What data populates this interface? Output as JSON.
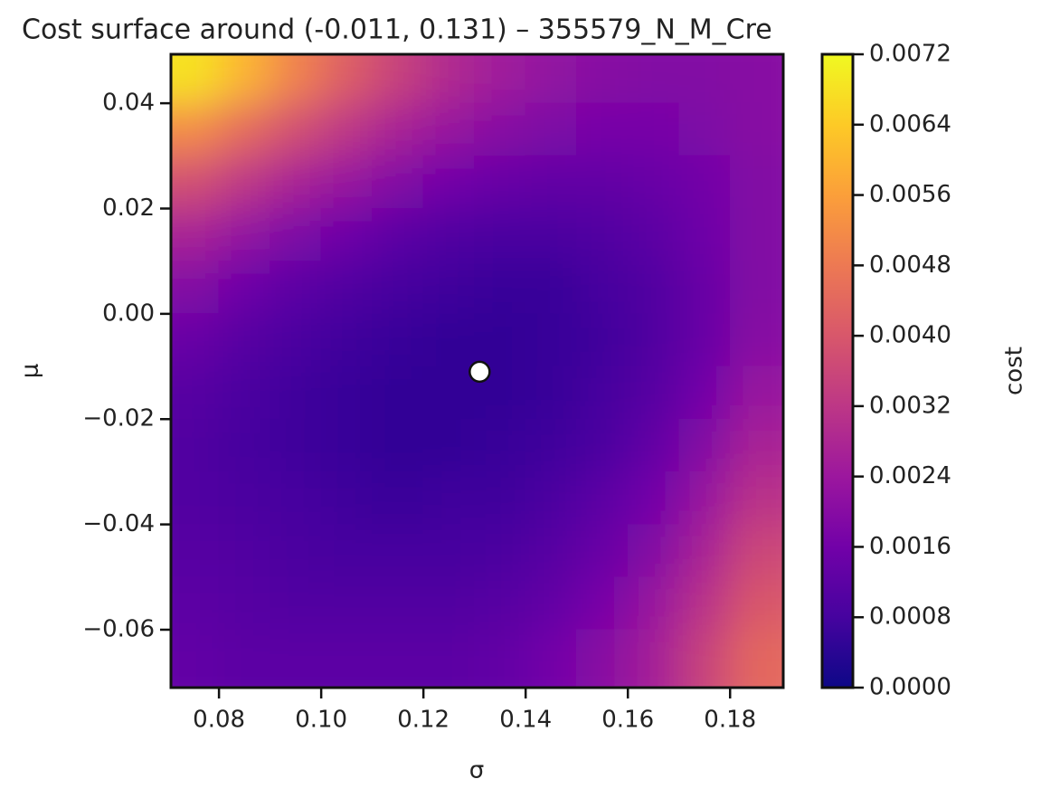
{
  "chart_data": {
    "type": "heatmap",
    "title": "Cost surface around (-0.011, 0.131) – 355579_N_M_Cre",
    "x_label": "σ",
    "y_label": "μ",
    "colorbar_label": "cost",
    "x": [
      0.075,
      0.085,
      0.095,
      0.105,
      0.115,
      0.125,
      0.135,
      0.145,
      0.155,
      0.165,
      0.175,
      0.185
    ],
    "y": [
      0.045,
      0.035,
      0.025,
      0.015,
      0.005,
      -0.005,
      -0.015,
      -0.025,
      -0.035,
      -0.045,
      -0.055,
      -0.065
    ],
    "z": [
      [
        0.0068,
        0.006,
        0.005,
        0.0042,
        0.0035,
        0.0029,
        0.0025,
        0.0022,
        0.002,
        0.0019,
        0.0019,
        0.002
      ],
      [
        0.0052,
        0.0045,
        0.0038,
        0.0032,
        0.0027,
        0.0023,
        0.002,
        0.0018,
        0.0017,
        0.0017,
        0.0018,
        0.002
      ],
      [
        0.0038,
        0.0032,
        0.0027,
        0.0023,
        0.0019,
        0.0016,
        0.0014,
        0.0013,
        0.0013,
        0.0014,
        0.0016,
        0.0019
      ],
      [
        0.0027,
        0.0022,
        0.0018,
        0.0015,
        0.0012,
        0.001,
        0.0009,
        0.0009,
        0.001,
        0.0012,
        0.0015,
        0.0019
      ],
      [
        0.0019,
        0.0015,
        0.0012,
        0.001,
        0.0008,
        0.0007,
        0.0006,
        0.0006,
        0.0008,
        0.001,
        0.0014,
        0.0019
      ],
      [
        0.0014,
        0.0011,
        0.0009,
        0.0007,
        0.0006,
        0.0005,
        0.0005,
        0.0006,
        0.0007,
        0.001,
        0.0014,
        0.002
      ],
      [
        0.0011,
        0.0009,
        0.0007,
        0.0006,
        0.0005,
        0.0005,
        0.0005,
        0.0006,
        0.0008,
        0.0011,
        0.0016,
        0.0023
      ],
      [
        0.001,
        0.0008,
        0.0007,
        0.0006,
        0.0005,
        0.0005,
        0.0006,
        0.0007,
        0.0009,
        0.0013,
        0.0019,
        0.0027
      ],
      [
        0.001,
        0.0009,
        0.0008,
        0.0007,
        0.0006,
        0.0007,
        0.0007,
        0.0009,
        0.0012,
        0.0016,
        0.0023,
        0.0031
      ],
      [
        0.0011,
        0.001,
        0.0009,
        0.0008,
        0.0008,
        0.0008,
        0.0009,
        0.0011,
        0.0014,
        0.0019,
        0.0027,
        0.0036
      ],
      [
        0.0012,
        0.0011,
        0.001,
        0.001,
        0.001,
        0.001,
        0.0011,
        0.0013,
        0.0017,
        0.0023,
        0.0031,
        0.004
      ],
      [
        0.0013,
        0.0012,
        0.0012,
        0.0012,
        0.0012,
        0.0012,
        0.0013,
        0.0016,
        0.002,
        0.0026,
        0.0035,
        0.0044
      ]
    ],
    "point": {
      "x": 0.131,
      "y": -0.011
    },
    "xlim": [
      0.0706,
      0.1904
    ],
    "ylim": [
      -0.071,
      0.0493
    ],
    "xticks": [
      {
        "value": 0.08,
        "label": "0.08"
      },
      {
        "value": 0.1,
        "label": "0.10"
      },
      {
        "value": 0.12,
        "label": "0.12"
      },
      {
        "value": 0.14,
        "label": "0.14"
      },
      {
        "value": 0.16,
        "label": "0.16"
      },
      {
        "value": 0.18,
        "label": "0.18"
      }
    ],
    "yticks": [
      {
        "value": -0.06,
        "label": "−0.06"
      },
      {
        "value": -0.04,
        "label": "−0.04"
      },
      {
        "value": -0.02,
        "label": "−0.02"
      },
      {
        "value": 0,
        "label": "0.00"
      },
      {
        "value": 0.02,
        "label": "0.02"
      },
      {
        "value": 0.04,
        "label": "0.04"
      }
    ],
    "clim": [
      0,
      0.0072
    ],
    "cticks": [
      {
        "value": 0,
        "label": "0.0000"
      },
      {
        "value": 0.0008,
        "label": "0.0008"
      },
      {
        "value": 0.0016,
        "label": "0.0016"
      },
      {
        "value": 0.0024,
        "label": "0.0024"
      },
      {
        "value": 0.0032,
        "label": "0.0032"
      },
      {
        "value": 0.004,
        "label": "0.0040"
      },
      {
        "value": 0.0048,
        "label": "0.0048"
      },
      {
        "value": 0.0056,
        "label": "0.0056"
      },
      {
        "value": 0.0064,
        "label": "0.0064"
      },
      {
        "value": 0.0072,
        "label": "0.0072"
      }
    ],
    "colormap": [
      "#0d0887",
      "#46039f",
      "#7201a8",
      "#9c179e",
      "#bd3786",
      "#d8576b",
      "#ed7953",
      "#fb9f3a",
      "#fdca26",
      "#f0f921"
    ]
  }
}
